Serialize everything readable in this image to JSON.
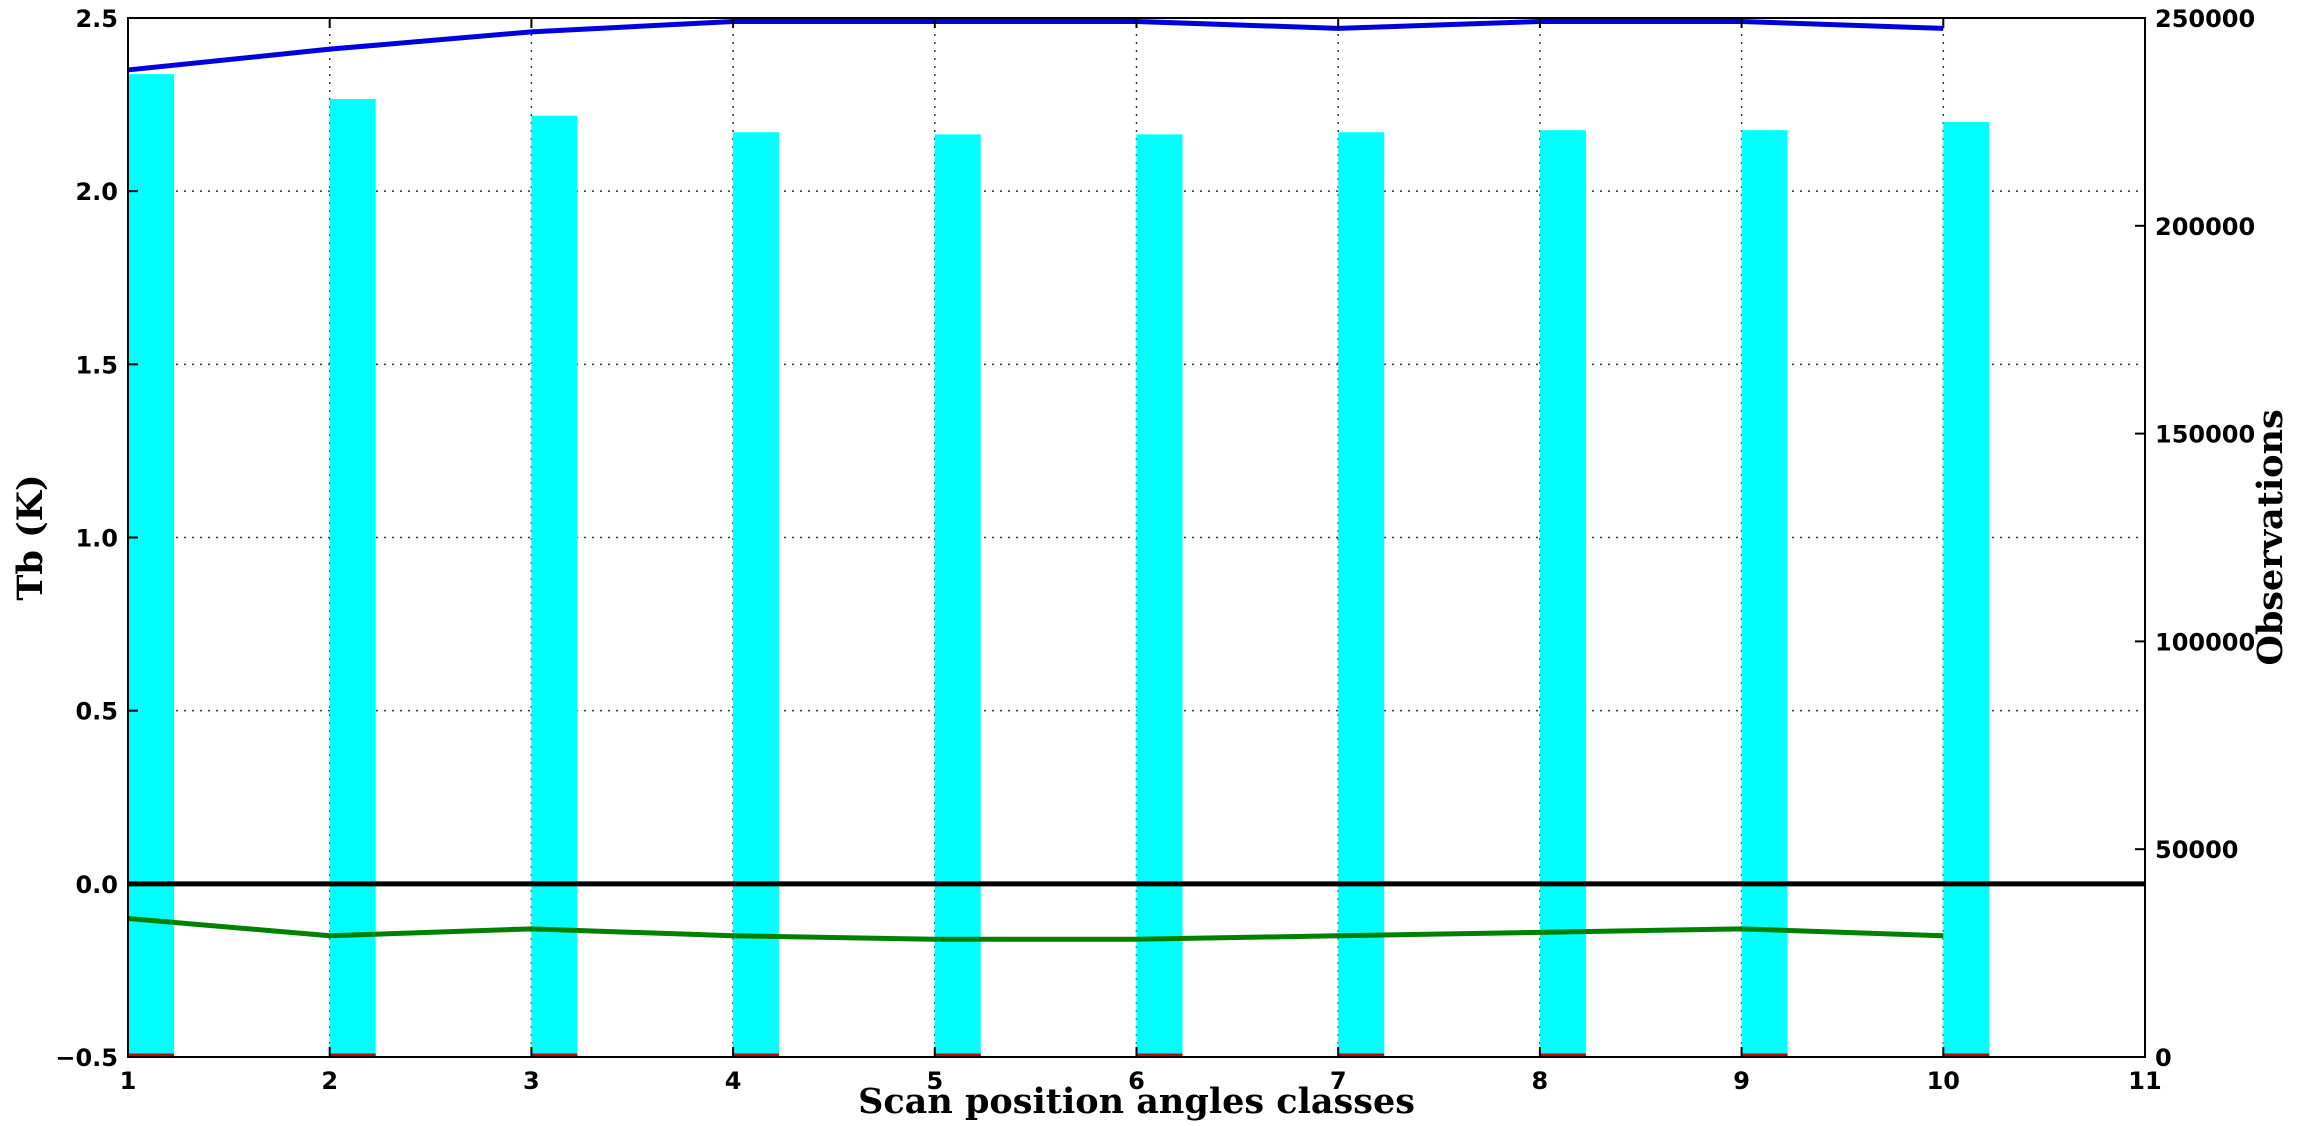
{
  "chart_data": {
    "type": "bar",
    "x": [
      1,
      2,
      3,
      4,
      5,
      6,
      7,
      8,
      9,
      10
    ],
    "xlabel": "Scan position angles classes",
    "ylabel": "Tb (K)",
    "y2label": "Observations",
    "xlim": [
      1,
      11
    ],
    "ylim": [
      -0.5,
      2.5
    ],
    "y2lim": [
      0,
      250000
    ],
    "xticks": [
      1,
      2,
      3,
      4,
      5,
      6,
      7,
      8,
      9,
      10,
      11
    ],
    "yticks": [
      -0.5,
      0.0,
      0.5,
      1.0,
      1.5,
      2.0,
      2.5
    ],
    "yticklabels": [
      "−0.5",
      "0.0",
      "0.5",
      "1.0",
      "1.5",
      "2.0",
      "2.5"
    ],
    "y2ticks": [
      0,
      50000,
      100000,
      150000,
      200000,
      250000
    ],
    "grid": true,
    "bars": {
      "axis": "y2",
      "color": "#00ffff",
      "values": [
        236500,
        230500,
        226500,
        222500,
        222000,
        222000,
        222500,
        223000,
        223000,
        225000
      ]
    },
    "small_bars": {
      "axis": "y",
      "color": "#cc0000",
      "values": [
        -0.49,
        -0.49,
        -0.49,
        -0.49,
        -0.49,
        -0.49,
        -0.49,
        -0.49,
        -0.49,
        -0.49
      ]
    },
    "series": [
      {
        "axis": "y",
        "color": "#0000dd",
        "values": [
          2.35,
          2.41,
          2.46,
          2.49,
          2.49,
          2.49,
          2.47,
          2.49,
          2.49,
          2.47
        ]
      },
      {
        "axis": "y",
        "color": "#008000",
        "values": [
          -0.1,
          -0.15,
          -0.13,
          -0.15,
          -0.16,
          -0.16,
          -0.15,
          -0.14,
          -0.13,
          -0.15
        ]
      },
      {
        "axis": "y",
        "color": "#000000",
        "values": [
          0,
          0,
          0,
          0,
          0,
          0,
          0,
          0,
          0,
          0
        ],
        "extend_to_xmax": true
      }
    ]
  }
}
